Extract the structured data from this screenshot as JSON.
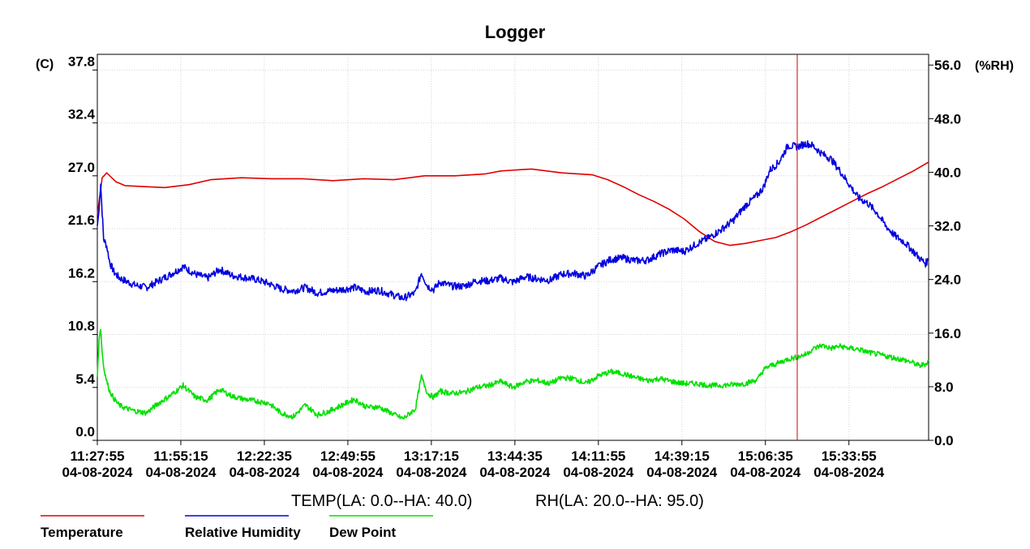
{
  "chart_data": {
    "type": "line",
    "title": "Logger",
    "left_axis": {
      "unit": "(C)",
      "min": 0,
      "max": 39.4,
      "ticks": [
        "0.0",
        "5.4",
        "10.8",
        "16.2",
        "21.6",
        "27.0",
        "32.4",
        "37.8"
      ]
    },
    "right_axis": {
      "unit": "(%RH)",
      "min": 0,
      "max": 57.6,
      "ticks": [
        "0.0",
        "8.0",
        "16.0",
        "24.0",
        "32.0",
        "40.0",
        "48.0",
        "56.0"
      ]
    },
    "x_range": [
      "11:27:55",
      "16:00:00"
    ],
    "x_ticks": [
      {
        "time": "11:27:55",
        "date": "04-08-2024"
      },
      {
        "time": "11:55:15",
        "date": "04-08-2024"
      },
      {
        "time": "12:22:35",
        "date": "04-08-2024"
      },
      {
        "time": "12:49:55",
        "date": "04-08-2024"
      },
      {
        "time": "13:17:15",
        "date": "04-08-2024"
      },
      {
        "time": "13:44:35",
        "date": "04-08-2024"
      },
      {
        "time": "14:11:55",
        "date": "04-08-2024"
      },
      {
        "time": "14:39:15",
        "date": "04-08-2024"
      },
      {
        "time": "15:06:35",
        "date": "04-08-2024"
      },
      {
        "time": "15:33:55",
        "date": "04-08-2024"
      }
    ],
    "grid": true,
    "marker_time": "15:17:00",
    "alarm_text": {
      "temp": "TEMP(LA: 0.0--HA: 40.0)",
      "rh": "RH(LA: 20.0--HA: 95.0)"
    },
    "series": [
      {
        "name": "Temperature",
        "axis": "left",
        "color": "#e00000",
        "x": [
          "11:27:55",
          "11:29:30",
          "11:31:00",
          "11:34:00",
          "11:37:00",
          "11:43:00",
          "11:50:00",
          "11:58:00",
          "12:05:00",
          "12:15:00",
          "12:25:00",
          "12:35:00",
          "12:45:00",
          "12:55:00",
          "13:05:00",
          "13:15:00",
          "13:25:00",
          "13:35:00",
          "13:40:00",
          "13:45:00",
          "13:50:00",
          "13:55:00",
          "14:00:00",
          "14:10:00",
          "14:15:00",
          "14:20:00",
          "14:25:00",
          "14:30:00",
          "14:35:00",
          "14:40:00",
          "14:45:00",
          "14:50:00",
          "14:55:00",
          "15:00:00",
          "15:05:00",
          "15:10:00",
          "15:15:00",
          "15:20:00",
          "15:25:00",
          "15:30:00",
          "15:35:00",
          "15:40:00",
          "15:45:00",
          "15:50:00",
          "15:55:00",
          "16:00:00"
        ],
        "y": [
          23.0,
          26.8,
          27.3,
          26.4,
          26.0,
          25.9,
          25.8,
          26.1,
          26.6,
          26.8,
          26.7,
          26.7,
          26.5,
          26.7,
          26.6,
          27.0,
          27.0,
          27.2,
          27.5,
          27.6,
          27.7,
          27.5,
          27.3,
          27.1,
          26.6,
          25.9,
          25.1,
          24.4,
          23.6,
          22.6,
          21.3,
          20.3,
          19.9,
          20.1,
          20.4,
          20.7,
          21.3,
          22.0,
          22.8,
          23.6,
          24.4,
          25.2,
          25.9,
          26.7,
          27.5,
          28.4
        ]
      },
      {
        "name": "Relative Humidity",
        "axis": "right",
        "color": "#0000e0",
        "x": [
          "11:27:55",
          "11:28:30",
          "11:29:00",
          "11:29:30",
          "11:30:00",
          "11:31:00",
          "11:32:00",
          "11:33:30",
          "11:35:00",
          "11:37:00",
          "11:40:00",
          "11:44:00",
          "11:48:00",
          "11:52:00",
          "11:56:00",
          "12:00:00",
          "12:04:00",
          "12:08:00",
          "12:12:00",
          "12:16:00",
          "12:20:00",
          "12:24:00",
          "12:28:00",
          "12:32:00",
          "12:36:00",
          "12:40:00",
          "12:44:00",
          "12:48:00",
          "12:52:00",
          "12:56:00",
          "13:00:00",
          "13:04:00",
          "13:08:00",
          "13:12:00",
          "13:14:00",
          "13:16:00",
          "13:18:00",
          "13:20:00",
          "13:24:00",
          "13:28:00",
          "13:32:00",
          "13:36:00",
          "13:40:00",
          "13:44:00",
          "13:48:00",
          "13:52:00",
          "13:56:00",
          "14:00:00",
          "14:04:00",
          "14:08:00",
          "14:12:00",
          "14:16:00",
          "14:20:00",
          "14:24:00",
          "14:28:00",
          "14:32:00",
          "14:36:00",
          "14:40:00",
          "14:44:00",
          "14:48:00",
          "14:52:00",
          "14:56:00",
          "15:00:00",
          "15:04:00",
          "15:06:00",
          "15:08:00",
          "15:11:00",
          "15:14:00",
          "15:17:00",
          "15:20:00",
          "15:22:00",
          "15:25:00",
          "15:28:00",
          "15:31:00",
          "15:34:00",
          "15:37:00",
          "15:40:00",
          "15:43:00",
          "15:46:00",
          "15:49:00",
          "15:52:00",
          "15:55:00",
          "15:57:00",
          "15:59:00",
          "16:00:00"
        ],
        "y": [
          32.0,
          34.5,
          38.5,
          34.0,
          30.0,
          29.0,
          26.5,
          25.0,
          24.3,
          23.8,
          23.2,
          22.8,
          23.8,
          24.8,
          25.9,
          24.8,
          24.2,
          25.5,
          24.6,
          24.3,
          24.0,
          23.4,
          22.6,
          22.3,
          22.8,
          22.0,
          22.3,
          22.5,
          22.8,
          22.2,
          22.4,
          21.8,
          21.2,
          22.0,
          25.0,
          23.0,
          22.5,
          23.6,
          23.0,
          23.0,
          23.8,
          23.8,
          24.2,
          23.6,
          24.4,
          24.1,
          23.9,
          24.8,
          24.9,
          24.5,
          26.0,
          27.0,
          27.2,
          26.8,
          26.9,
          27.8,
          28.4,
          28.2,
          29.3,
          30.2,
          31.4,
          32.8,
          35.0,
          36.6,
          37.8,
          40.3,
          41.5,
          44.0,
          43.8,
          44.3,
          44.0,
          42.8,
          42.0,
          40.2,
          38.2,
          36.2,
          35.4,
          34.0,
          32.0,
          30.5,
          29.6,
          28.2,
          27.2,
          26.4,
          27.0
        ]
      },
      {
        "name": "Dew Point",
        "axis": "left",
        "color": "#00e000",
        "x": [
          "11:27:55",
          "11:28:30",
          "11:29:00",
          "11:29:30",
          "11:30:00",
          "11:31:00",
          "11:32:00",
          "11:33:30",
          "11:35:00",
          "11:37:00",
          "11:40:00",
          "11:44:00",
          "11:48:00",
          "11:52:00",
          "11:56:00",
          "12:00:00",
          "12:04:00",
          "12:08:00",
          "12:12:00",
          "12:16:00",
          "12:20:00",
          "12:24:00",
          "12:28:00",
          "12:32:00",
          "12:36:00",
          "12:40:00",
          "12:44:00",
          "12:48:00",
          "12:52:00",
          "12:56:00",
          "13:00:00",
          "13:04:00",
          "13:08:00",
          "13:12:00",
          "13:14:00",
          "13:16:00",
          "13:18:00",
          "13:20:00",
          "13:24:00",
          "13:28:00",
          "13:32:00",
          "13:36:00",
          "13:40:00",
          "13:44:00",
          "13:48:00",
          "13:52:00",
          "13:56:00",
          "14:00:00",
          "14:04:00",
          "14:08:00",
          "14:12:00",
          "14:16:00",
          "14:20:00",
          "14:24:00",
          "14:28:00",
          "14:32:00",
          "14:36:00",
          "14:40:00",
          "14:44:00",
          "14:48:00",
          "14:52:00",
          "14:56:00",
          "15:00:00",
          "15:04:00",
          "15:06:00",
          "15:08:00",
          "15:11:00",
          "15:14:00",
          "15:17:00",
          "15:20:00",
          "15:22:00",
          "15:25:00",
          "15:28:00",
          "15:31:00",
          "15:34:00",
          "15:37:00",
          "15:40:00",
          "15:43:00",
          "15:46:00",
          "15:49:00",
          "15:52:00",
          "15:55:00",
          "15:57:00",
          "15:59:00",
          "16:00:00"
        ],
        "y": [
          6.5,
          10.5,
          11.5,
          9.0,
          7.5,
          6.0,
          5.0,
          4.2,
          3.6,
          3.3,
          3.0,
          2.8,
          3.8,
          4.6,
          5.6,
          4.4,
          4.1,
          5.2,
          4.5,
          4.2,
          4.0,
          3.8,
          2.8,
          2.4,
          3.6,
          2.6,
          3.0,
          3.6,
          4.2,
          3.4,
          3.4,
          2.8,
          2.2,
          3.2,
          6.5,
          4.8,
          4.4,
          5.0,
          4.8,
          4.9,
          5.4,
          5.6,
          6.0,
          5.4,
          6.0,
          6.1,
          5.8,
          6.4,
          6.3,
          5.8,
          6.6,
          7.0,
          6.8,
          6.4,
          6.1,
          6.3,
          6.0,
          5.8,
          5.8,
          5.6,
          5.6,
          5.7,
          5.8,
          6.2,
          7.2,
          7.6,
          7.9,
          8.3,
          8.5,
          8.8,
          9.3,
          9.7,
          9.4,
          9.6,
          9.4,
          9.3,
          9.0,
          8.8,
          8.6,
          8.4,
          8.2,
          7.9,
          7.6,
          7.8,
          8.1
        ]
      }
    ]
  }
}
